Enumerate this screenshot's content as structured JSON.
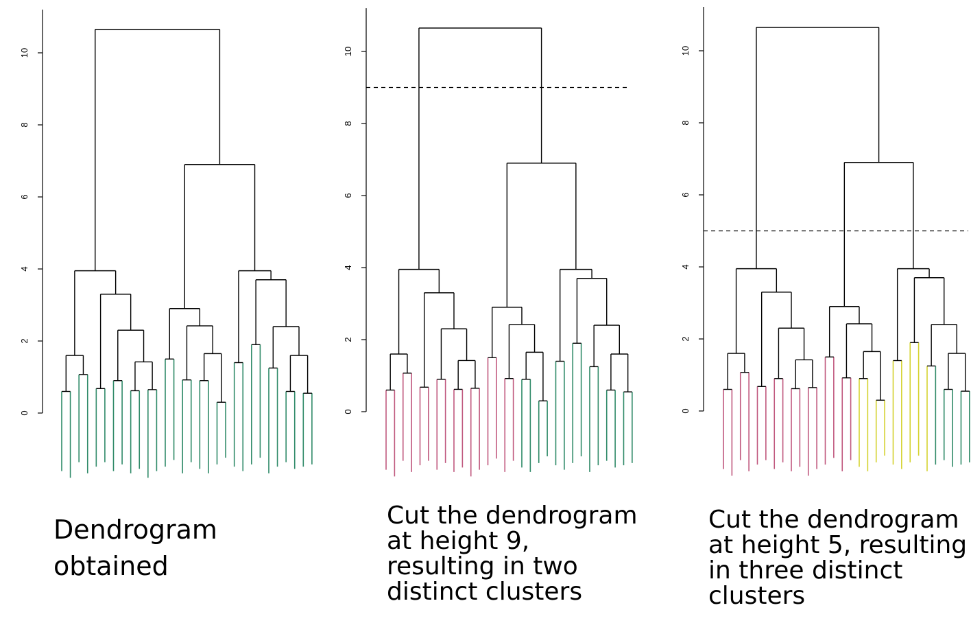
{
  "colors": {
    "tree": "#000000",
    "green": "#2f8a68",
    "pink": "#c0587e",
    "yellow": "#d4d22e"
  },
  "axis": {
    "ticks": [
      "0",
      "2",
      "4",
      "6",
      "8",
      "10"
    ]
  },
  "panels": [
    {
      "caption": "Dendrogram\nobtained",
      "cut_height": null,
      "cluster_colors": [
        "green",
        "green",
        "green",
        "green",
        "green",
        "green",
        "green",
        "green",
        "green",
        "green",
        "green",
        "green",
        "green",
        "green",
        "green",
        "green",
        "green",
        "green",
        "green",
        "green",
        "green",
        "green",
        "green",
        "green",
        "green",
        "green",
        "green",
        "green",
        "green",
        "green",
        "green",
        "green",
        "green",
        "green",
        "green",
        "green",
        "green",
        "green",
        "green",
        "green",
        "green",
        "green",
        "green",
        "green",
        "green",
        "green"
      ]
    },
    {
      "caption": "Cut the dendrogram\nat  height 9,\nresulting in two\ndistinct clusters",
      "cut_height": 9,
      "cluster_colors": [
        "pink",
        "pink",
        "pink",
        "pink",
        "pink",
        "pink",
        "pink",
        "pink",
        "pink",
        "pink",
        "pink",
        "pink",
        "pink",
        "pink",
        "pink",
        "pink",
        "pink",
        "pink",
        "pink",
        "pink",
        "pink",
        "pink",
        "pink",
        "pink",
        "green",
        "green",
        "green",
        "green",
        "green",
        "green",
        "green",
        "green",
        "green",
        "green",
        "green",
        "green",
        "green",
        "green",
        "green",
        "green",
        "green",
        "green",
        "green",
        "green",
        "green",
        "green"
      ]
    },
    {
      "caption": "Cut the dendrogram\nat height 5, resulting\nin three distinct\nclusters",
      "cut_height": 5,
      "cluster_colors": [
        "pink",
        "pink",
        "pink",
        "pink",
        "pink",
        "pink",
        "pink",
        "pink",
        "pink",
        "pink",
        "pink",
        "pink",
        "pink",
        "pink",
        "pink",
        "pink",
        "pink",
        "pink",
        "pink",
        "pink",
        "pink",
        "pink",
        "pink",
        "pink",
        "yellow",
        "yellow",
        "yellow",
        "yellow",
        "yellow",
        "yellow",
        "yellow",
        "yellow",
        "yellow",
        "yellow",
        "yellow",
        "yellow",
        "yellow",
        "yellow",
        "green",
        "green",
        "green",
        "green",
        "green",
        "green",
        "green",
        "green"
      ]
    }
  ]
}
